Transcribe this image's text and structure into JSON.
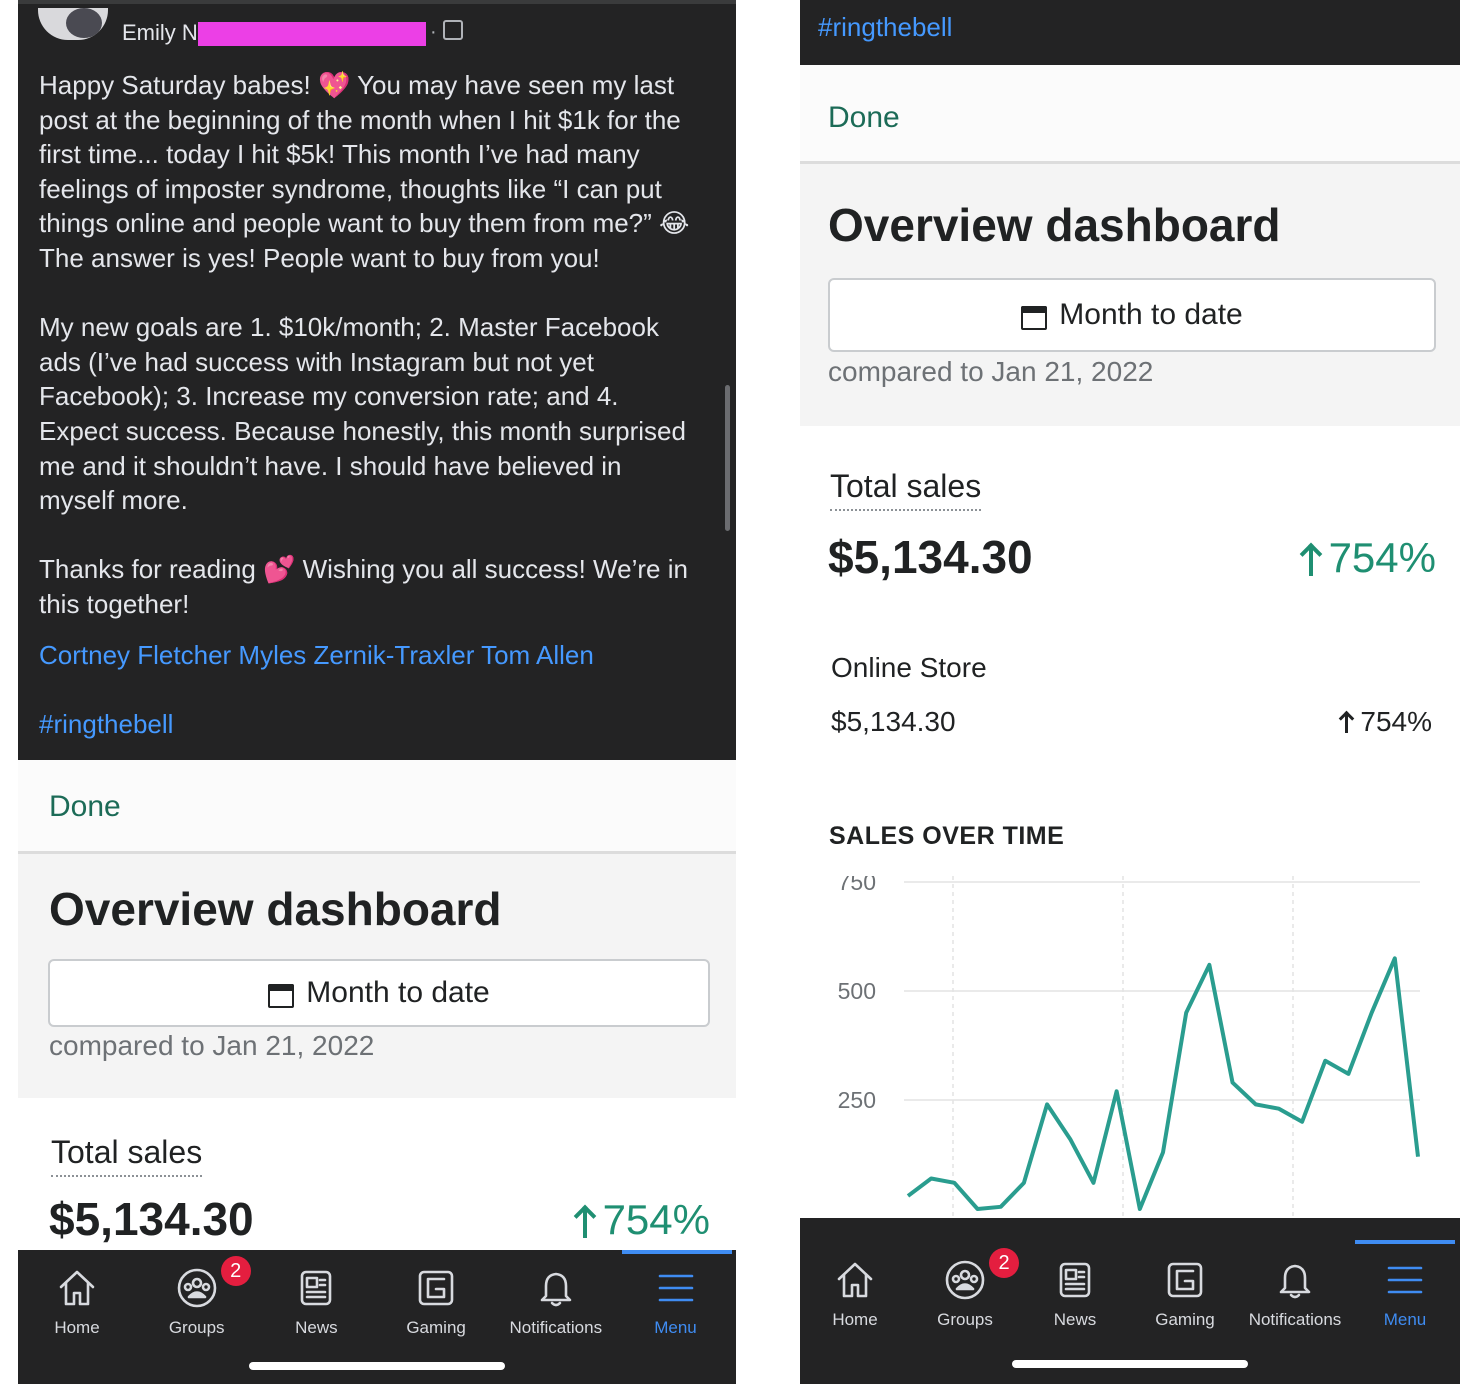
{
  "post": {
    "author_visible": "Emily N",
    "privacy_separator": "·",
    "body": "Happy Saturday babes! 💖 You may have seen my last\npost at the beginning of the month when I hit $1k for the\nfirst time... today I hit $5k! This month I’ve had many\nfeelings of imposter syndrome, thoughts like “I can put\nthings online and people want to buy them from me?” 😂\nThe answer is yes! People want to buy from you!\n\nMy new goals are 1. $10k/month; 2. Master Facebook\nads (I’ve had success with Instagram but not yet\nFacebook); 3. Increase my conversion rate; and 4.\nExpect success. Because honestly, this month surprised\nme and it shouldn’t have. I should have believed in\nmyself more.\n\nThanks for reading 💕 Wishing you all success! We’re in\nthis together!",
    "mentions": "Cortney Fletcher Myles Zernik-Traxler Tom Allen",
    "hashtag": "#ringthebell"
  },
  "right_header": {
    "hashtag": "#ringthebell"
  },
  "dashboard": {
    "done_label": "Done",
    "title": "Overview dashboard",
    "date_button": "Month to date",
    "compared_to": "compared to Jan 21, 2022",
    "total_sales_label": "Total sales",
    "total_sales_value": "$5,134.30",
    "total_sales_change": "754%",
    "online_store_label": "Online Store",
    "online_store_value": "$5,134.30",
    "online_store_change": "754%",
    "sales_over_time_label": "SALES OVER TIME"
  },
  "chart_data": {
    "type": "line",
    "title": "SALES OVER TIME",
    "xlabel": "",
    "ylabel": "",
    "yticks": [
      750,
      500,
      250
    ],
    "ytick_labels": [
      "750",
      "500",
      "250"
    ],
    "ylim": [
      0,
      750
    ],
    "grid": true,
    "color": "#2a9d8f",
    "series": [
      {
        "values": [
          30,
          70,
          60,
          0,
          5,
          60,
          240,
          160,
          60,
          270,
          0,
          130,
          450,
          560,
          290,
          240,
          230,
          200,
          340,
          310,
          450,
          575,
          120
        ]
      }
    ]
  },
  "tabs": [
    {
      "label": "Home",
      "icon": "home-icon"
    },
    {
      "label": "Groups",
      "icon": "groups-icon",
      "badge": "2"
    },
    {
      "label": "News",
      "icon": "news-icon"
    },
    {
      "label": "Gaming",
      "icon": "gaming-icon"
    },
    {
      "label": "Notifications",
      "icon": "bell-icon"
    },
    {
      "label": "Menu",
      "icon": "menu-icon"
    }
  ],
  "colors": {
    "dark_bg": "#232324",
    "link": "#4599ff",
    "done_green": "#1c6b57",
    "positive_green": "#1f8f72",
    "chart_line": "#2a9d8f",
    "active_tab": "#3f8cf2",
    "badge_red": "#e41e3f"
  }
}
